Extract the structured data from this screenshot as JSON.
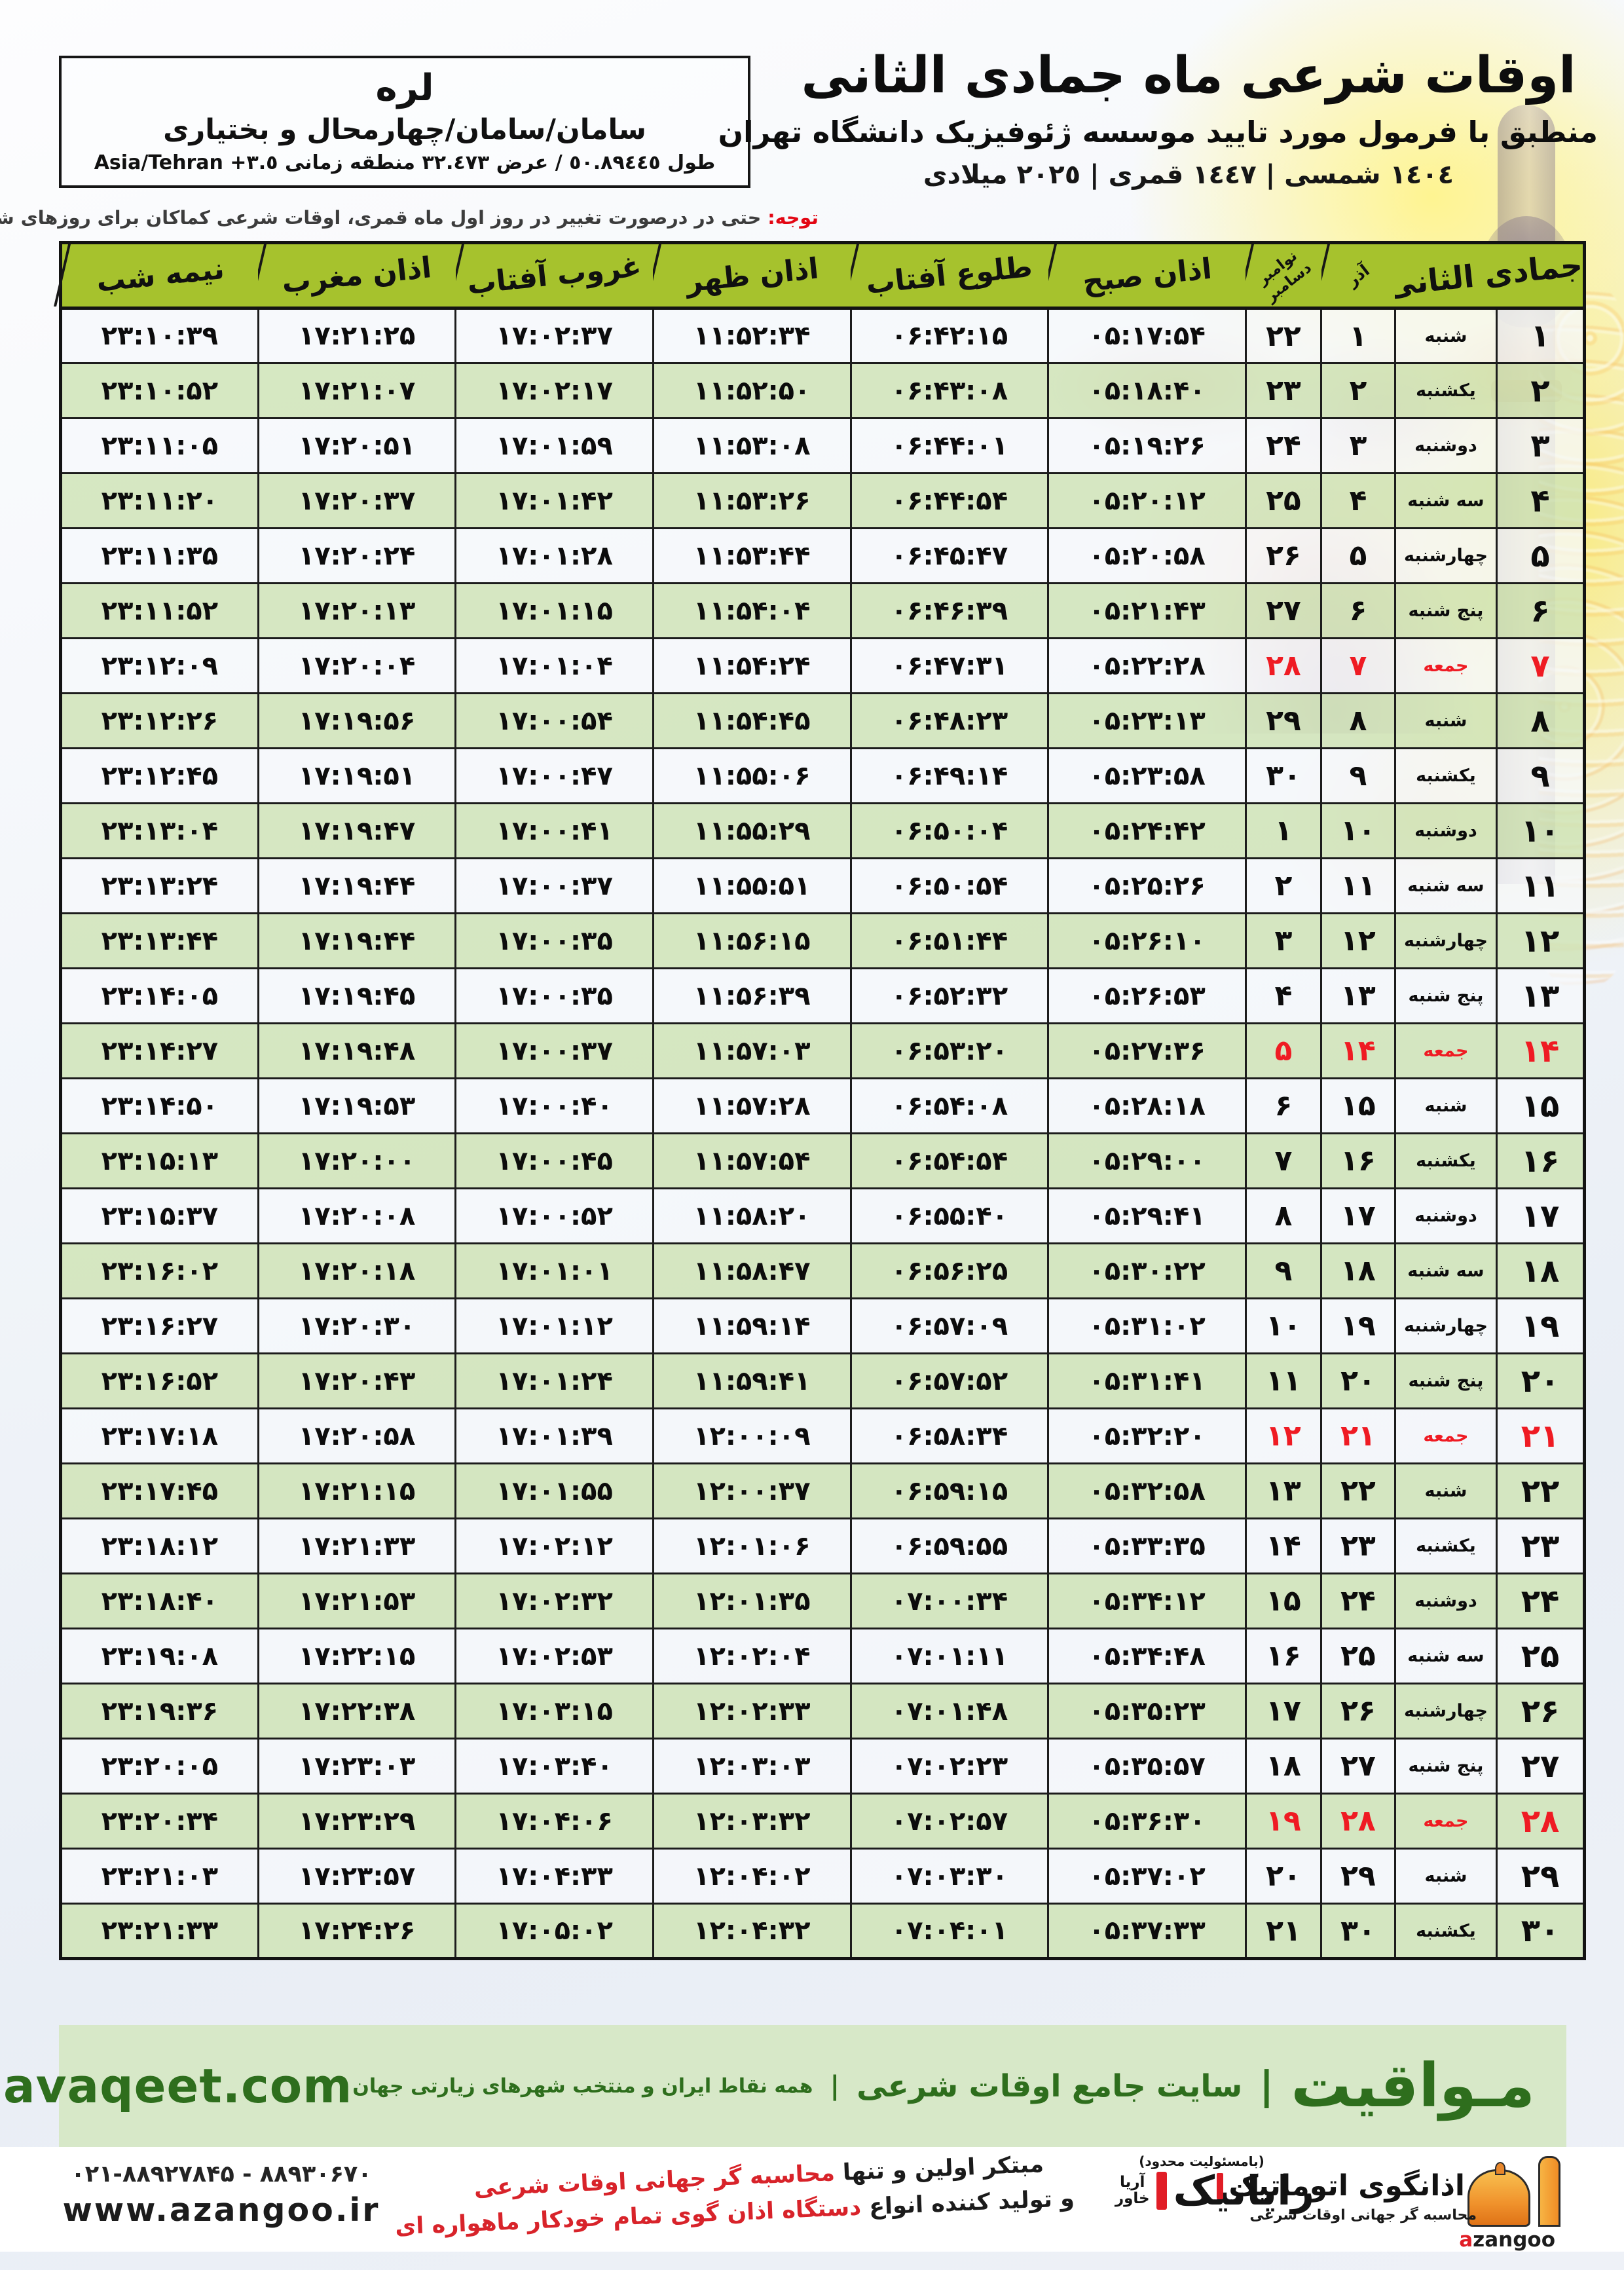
{
  "colors": {
    "olive": "#a6c22d",
    "row_green": "#cfe3b6",
    "friday_red": "#ef1b23",
    "dark_green": "#2e6e1d",
    "band_green": "#d7e8c8",
    "bottom_green": "#a5c521",
    "note_red": "#e30613"
  },
  "location": {
    "city": "لره",
    "region": "سامان/سامان/چهارمحال و بختیاری",
    "coords_rtl": "طول ٥٠.٨٩٤٤٥ / عرض ٣٢.٤٧٣ منطقه زمانی",
    "coords_ltr": "Asia/Tehran +٣.٥"
  },
  "header": {
    "title": "اوقات شرعی ماه جمادی الثانی",
    "subtitle": "منطبق با فرمول مورد تایید موسسه ژئوفیزیک دانشگاه تهران",
    "dates": "١٤٠٤ شمسی | ١٤٤٧ قمری | ٢٠٢٥ میلادی"
  },
  "note": {
    "label": "توجه:",
    "text": " حتی در درصورت تغییر در روز اول ماه قمری، اوقات شرعی کماکان برای روزهای شمسی و میلادی معتبر است."
  },
  "table": {
    "header": {
      "jumada": "جمادی الثانی",
      "azar": "آذر",
      "nov": "نوامبر",
      "dec": "دسامبر",
      "sobh": "اذان صبح",
      "tolu": "طلوع آفتاب",
      "zohr": "اذان ظهر",
      "ghorub": "غروب آفتاب",
      "maghreb": "اذان مغرب",
      "shab": "نیمه شب"
    },
    "rows": [
      {
        "day": "۱",
        "weekday": "شنبه",
        "azar": "۱",
        "miladi": "۲۲",
        "sobh": "۰۵:۱۷:۵۴",
        "tolu": "۰۶:۴۲:۱۵",
        "zohr": "۱۱:۵۲:۳۴",
        "ghorub": "۱۷:۰۲:۳۷",
        "maghreb": "۱۷:۲۱:۲۵",
        "shab": "۲۳:۱۰:۳۹",
        "friday": false
      },
      {
        "day": "۲",
        "weekday": "یکشنبه",
        "azar": "۲",
        "miladi": "۲۳",
        "sobh": "۰۵:۱۸:۴۰",
        "tolu": "۰۶:۴۳:۰۸",
        "zohr": "۱۱:۵۲:۵۰",
        "ghorub": "۱۷:۰۲:۱۷",
        "maghreb": "۱۷:۲۱:۰۷",
        "shab": "۲۳:۱۰:۵۲",
        "friday": false
      },
      {
        "day": "۳",
        "weekday": "دوشنبه",
        "azar": "۳",
        "miladi": "۲۴",
        "sobh": "۰۵:۱۹:۲۶",
        "tolu": "۰۶:۴۴:۰۱",
        "zohr": "۱۱:۵۳:۰۸",
        "ghorub": "۱۷:۰۱:۵۹",
        "maghreb": "۱۷:۲۰:۵۱",
        "shab": "۲۳:۱۱:۰۵",
        "friday": false
      },
      {
        "day": "۴",
        "weekday": "سه شنبه",
        "azar": "۴",
        "miladi": "۲۵",
        "sobh": "۰۵:۲۰:۱۲",
        "tolu": "۰۶:۴۴:۵۴",
        "zohr": "۱۱:۵۳:۲۶",
        "ghorub": "۱۷:۰۱:۴۲",
        "maghreb": "۱۷:۲۰:۳۷",
        "shab": "۲۳:۱۱:۲۰",
        "friday": false
      },
      {
        "day": "۵",
        "weekday": "چهارشنبه",
        "azar": "۵",
        "miladi": "۲۶",
        "sobh": "۰۵:۲۰:۵۸",
        "tolu": "۰۶:۴۵:۴۷",
        "zohr": "۱۱:۵۳:۴۴",
        "ghorub": "۱۷:۰۱:۲۸",
        "maghreb": "۱۷:۲۰:۲۴",
        "shab": "۲۳:۱۱:۳۵",
        "friday": false
      },
      {
        "day": "۶",
        "weekday": "پنج شنبه",
        "azar": "۶",
        "miladi": "۲۷",
        "sobh": "۰۵:۲۱:۴۳",
        "tolu": "۰۶:۴۶:۳۹",
        "zohr": "۱۱:۵۴:۰۴",
        "ghorub": "۱۷:۰۱:۱۵",
        "maghreb": "۱۷:۲۰:۱۳",
        "shab": "۲۳:۱۱:۵۲",
        "friday": false
      },
      {
        "day": "۷",
        "weekday": "جمعه",
        "azar": "۷",
        "miladi": "۲۸",
        "sobh": "۰۵:۲۲:۲۸",
        "tolu": "۰۶:۴۷:۳۱",
        "zohr": "۱۱:۵۴:۲۴",
        "ghorub": "۱۷:۰۱:۰۴",
        "maghreb": "۱۷:۲۰:۰۴",
        "shab": "۲۳:۱۲:۰۹",
        "friday": true
      },
      {
        "day": "۸",
        "weekday": "شنبه",
        "azar": "۸",
        "miladi": "۲۹",
        "sobh": "۰۵:۲۳:۱۳",
        "tolu": "۰۶:۴۸:۲۳",
        "zohr": "۱۱:۵۴:۴۵",
        "ghorub": "۱۷:۰۰:۵۴",
        "maghreb": "۱۷:۱۹:۵۶",
        "shab": "۲۳:۱۲:۲۶",
        "friday": false
      },
      {
        "day": "۹",
        "weekday": "یکشنبه",
        "azar": "۹",
        "miladi": "۳۰",
        "sobh": "۰۵:۲۳:۵۸",
        "tolu": "۰۶:۴۹:۱۴",
        "zohr": "۱۱:۵۵:۰۶",
        "ghorub": "۱۷:۰۰:۴۷",
        "maghreb": "۱۷:۱۹:۵۱",
        "shab": "۲۳:۱۲:۴۵",
        "friday": false
      },
      {
        "day": "۱۰",
        "weekday": "دوشنبه",
        "azar": "۱۰",
        "miladi": "۱",
        "sobh": "۰۵:۲۴:۴۲",
        "tolu": "۰۶:۵۰:۰۴",
        "zohr": "۱۱:۵۵:۲۹",
        "ghorub": "۱۷:۰۰:۴۱",
        "maghreb": "۱۷:۱۹:۴۷",
        "shab": "۲۳:۱۳:۰۴",
        "friday": false
      },
      {
        "day": "۱۱",
        "weekday": "سه شنبه",
        "azar": "۱۱",
        "miladi": "۲",
        "sobh": "۰۵:۲۵:۲۶",
        "tolu": "۰۶:۵۰:۵۴",
        "zohr": "۱۱:۵۵:۵۱",
        "ghorub": "۱۷:۰۰:۳۷",
        "maghreb": "۱۷:۱۹:۴۴",
        "shab": "۲۳:۱۳:۲۴",
        "friday": false
      },
      {
        "day": "۱۲",
        "weekday": "چهارشنبه",
        "azar": "۱۲",
        "miladi": "۳",
        "sobh": "۰۵:۲۶:۱۰",
        "tolu": "۰۶:۵۱:۴۴",
        "zohr": "۱۱:۵۶:۱۵",
        "ghorub": "۱۷:۰۰:۳۵",
        "maghreb": "۱۷:۱۹:۴۴",
        "shab": "۲۳:۱۳:۴۴",
        "friday": false
      },
      {
        "day": "۱۳",
        "weekday": "پنج شنبه",
        "azar": "۱۳",
        "miladi": "۴",
        "sobh": "۰۵:۲۶:۵۳",
        "tolu": "۰۶:۵۲:۳۲",
        "zohr": "۱۱:۵۶:۳۹",
        "ghorub": "۱۷:۰۰:۳۵",
        "maghreb": "۱۷:۱۹:۴۵",
        "shab": "۲۳:۱۴:۰۵",
        "friday": false
      },
      {
        "day": "۱۴",
        "weekday": "جمعه",
        "azar": "۱۴",
        "miladi": "۵",
        "sobh": "۰۵:۲۷:۳۶",
        "tolu": "۰۶:۵۳:۲۰",
        "zohr": "۱۱:۵۷:۰۳",
        "ghorub": "۱۷:۰۰:۳۷",
        "maghreb": "۱۷:۱۹:۴۸",
        "shab": "۲۳:۱۴:۲۷",
        "friday": true
      },
      {
        "day": "۱۵",
        "weekday": "شنبه",
        "azar": "۱۵",
        "miladi": "۶",
        "sobh": "۰۵:۲۸:۱۸",
        "tolu": "۰۶:۵۴:۰۸",
        "zohr": "۱۱:۵۷:۲۸",
        "ghorub": "۱۷:۰۰:۴۰",
        "maghreb": "۱۷:۱۹:۵۳",
        "shab": "۲۳:۱۴:۵۰",
        "friday": false
      },
      {
        "day": "۱۶",
        "weekday": "یکشنبه",
        "azar": "۱۶",
        "miladi": "۷",
        "sobh": "۰۵:۲۹:۰۰",
        "tolu": "۰۶:۵۴:۵۴",
        "zohr": "۱۱:۵۷:۵۴",
        "ghorub": "۱۷:۰۰:۴۵",
        "maghreb": "۱۷:۲۰:۰۰",
        "shab": "۲۳:۱۵:۱۳",
        "friday": false
      },
      {
        "day": "۱۷",
        "weekday": "دوشنبه",
        "azar": "۱۷",
        "miladi": "۸",
        "sobh": "۰۵:۲۹:۴۱",
        "tolu": "۰۶:۵۵:۴۰",
        "zohr": "۱۱:۵۸:۲۰",
        "ghorub": "۱۷:۰۰:۵۲",
        "maghreb": "۱۷:۲۰:۰۸",
        "shab": "۲۳:۱۵:۳۷",
        "friday": false
      },
      {
        "day": "۱۸",
        "weekday": "سه شنبه",
        "azar": "۱۸",
        "miladi": "۹",
        "sobh": "۰۵:۳۰:۲۲",
        "tolu": "۰۶:۵۶:۲۵",
        "zohr": "۱۱:۵۸:۴۷",
        "ghorub": "۱۷:۰۱:۰۱",
        "maghreb": "۱۷:۲۰:۱۸",
        "shab": "۲۳:۱۶:۰۲",
        "friday": false
      },
      {
        "day": "۱۹",
        "weekday": "چهارشنبه",
        "azar": "۱۹",
        "miladi": "۱۰",
        "sobh": "۰۵:۳۱:۰۲",
        "tolu": "۰۶:۵۷:۰۹",
        "zohr": "۱۱:۵۹:۱۴",
        "ghorub": "۱۷:۰۱:۱۲",
        "maghreb": "۱۷:۲۰:۳۰",
        "shab": "۲۳:۱۶:۲۷",
        "friday": false
      },
      {
        "day": "۲۰",
        "weekday": "پنج شنبه",
        "azar": "۲۰",
        "miladi": "۱۱",
        "sobh": "۰۵:۳۱:۴۱",
        "tolu": "۰۶:۵۷:۵۲",
        "zohr": "۱۱:۵۹:۴۱",
        "ghorub": "۱۷:۰۱:۲۴",
        "maghreb": "۱۷:۲۰:۴۳",
        "shab": "۲۳:۱۶:۵۲",
        "friday": false
      },
      {
        "day": "۲۱",
        "weekday": "جمعه",
        "azar": "۲۱",
        "miladi": "۱۲",
        "sobh": "۰۵:۳۲:۲۰",
        "tolu": "۰۶:۵۸:۳۴",
        "zohr": "۱۲:۰۰:۰۹",
        "ghorub": "۱۷:۰۱:۳۹",
        "maghreb": "۱۷:۲۰:۵۸",
        "shab": "۲۳:۱۷:۱۸",
        "friday": true
      },
      {
        "day": "۲۲",
        "weekday": "شنبه",
        "azar": "۲۲",
        "miladi": "۱۳",
        "sobh": "۰۵:۳۲:۵۸",
        "tolu": "۰۶:۵۹:۱۵",
        "zohr": "۱۲:۰۰:۳۷",
        "ghorub": "۱۷:۰۱:۵۵",
        "maghreb": "۱۷:۲۱:۱۵",
        "shab": "۲۳:۱۷:۴۵",
        "friday": false
      },
      {
        "day": "۲۳",
        "weekday": "یکشنبه",
        "azar": "۲۳",
        "miladi": "۱۴",
        "sobh": "۰۵:۳۳:۳۵",
        "tolu": "۰۶:۵۹:۵۵",
        "zohr": "۱۲:۰۱:۰۶",
        "ghorub": "۱۷:۰۲:۱۲",
        "maghreb": "۱۷:۲۱:۳۳",
        "shab": "۲۳:۱۸:۱۲",
        "friday": false
      },
      {
        "day": "۲۴",
        "weekday": "دوشنبه",
        "azar": "۲۴",
        "miladi": "۱۵",
        "sobh": "۰۵:۳۴:۱۲",
        "tolu": "۰۷:۰۰:۳۴",
        "zohr": "۱۲:۰۱:۳۵",
        "ghorub": "۱۷:۰۲:۳۲",
        "maghreb": "۱۷:۲۱:۵۳",
        "shab": "۲۳:۱۸:۴۰",
        "friday": false
      },
      {
        "day": "۲۵",
        "weekday": "سه شنبه",
        "azar": "۲۵",
        "miladi": "۱۶",
        "sobh": "۰۵:۳۴:۴۸",
        "tolu": "۰۷:۰۱:۱۱",
        "zohr": "۱۲:۰۲:۰۴",
        "ghorub": "۱۷:۰۲:۵۳",
        "maghreb": "۱۷:۲۲:۱۵",
        "shab": "۲۳:۱۹:۰۸",
        "friday": false
      },
      {
        "day": "۲۶",
        "weekday": "چهارشنبه",
        "azar": "۲۶",
        "miladi": "۱۷",
        "sobh": "۰۵:۳۵:۲۳",
        "tolu": "۰۷:۰۱:۴۸",
        "zohr": "۱۲:۰۲:۳۳",
        "ghorub": "۱۷:۰۳:۱۵",
        "maghreb": "۱۷:۲۲:۳۸",
        "shab": "۲۳:۱۹:۳۶",
        "friday": false
      },
      {
        "day": "۲۷",
        "weekday": "پنج شنبه",
        "azar": "۲۷",
        "miladi": "۱۸",
        "sobh": "۰۵:۳۵:۵۷",
        "tolu": "۰۷:۰۲:۲۳",
        "zohr": "۱۲:۰۳:۰۳",
        "ghorub": "۱۷:۰۳:۴۰",
        "maghreb": "۱۷:۲۳:۰۳",
        "shab": "۲۳:۲۰:۰۵",
        "friday": false
      },
      {
        "day": "۲۸",
        "weekday": "جمعه",
        "azar": "۲۸",
        "miladi": "۱۹",
        "sobh": "۰۵:۳۶:۳۰",
        "tolu": "۰۷:۰۲:۵۷",
        "zohr": "۱۲:۰۳:۳۲",
        "ghorub": "۱۷:۰۴:۰۶",
        "maghreb": "۱۷:۲۳:۲۹",
        "shab": "۲۳:۲۰:۳۴",
        "friday": true
      },
      {
        "day": "۲۹",
        "weekday": "شنبه",
        "azar": "۲۹",
        "miladi": "۲۰",
        "sobh": "۰۵:۳۷:۰۲",
        "tolu": "۰۷:۰۳:۳۰",
        "zohr": "۱۲:۰۴:۰۲",
        "ghorub": "۱۷:۰۴:۳۳",
        "maghreb": "۱۷:۲۳:۵۷",
        "shab": "۲۳:۲۱:۰۳",
        "friday": false
      },
      {
        "day": "۳۰",
        "weekday": "یکشنبه",
        "azar": "۳۰",
        "miladi": "۲۱",
        "sobh": "۰۵:۳۷:۳۳",
        "tolu": "۰۷:۰۴:۰۱",
        "zohr": "۱۲:۰۴:۳۲",
        "ghorub": "۱۷:۰۵:۰۲",
        "maghreb": "۱۷:۲۴:۲۶",
        "shab": "۲۳:۲۱:۳۳",
        "friday": false
      }
    ]
  },
  "band": {
    "brand": "مـواقیت",
    "pipe": "|",
    "site_label": "سایت جامع اوقات شرعی",
    "coverage": "همه نقاط ایران و منتخب شهرهای زیارتی جهان",
    "url": "mavaqeet.com"
  },
  "strip": {
    "phones": "۰۲۱-۸۸۹۲۷۸۴۵ - ۸۸۹۳۰۶۷۰",
    "url": "www.azangoo.ir",
    "slogan1_black": "مبتکر اولین و تنها ",
    "slogan1_red": "محاسبه گر جهانی اوقات شرعی",
    "slogan2_black": "و تولید کننده انواع ",
    "slogan2_red": "دستگاه اذان گوی تمام خودکار ماهواره ای",
    "rayanik_note": "(بامسئولیت محدود)",
    "rayanik_name": "رایانیک",
    "rayanik_sub1": "آریا",
    "rayanik_sub2": "خاور",
    "azangoo_fa": "اذانگوی اتوماتیک",
    "azangoo_sub": "محاسبه گر جهانی اوقات شرعی",
    "azangoo_latin": "azangoo"
  }
}
